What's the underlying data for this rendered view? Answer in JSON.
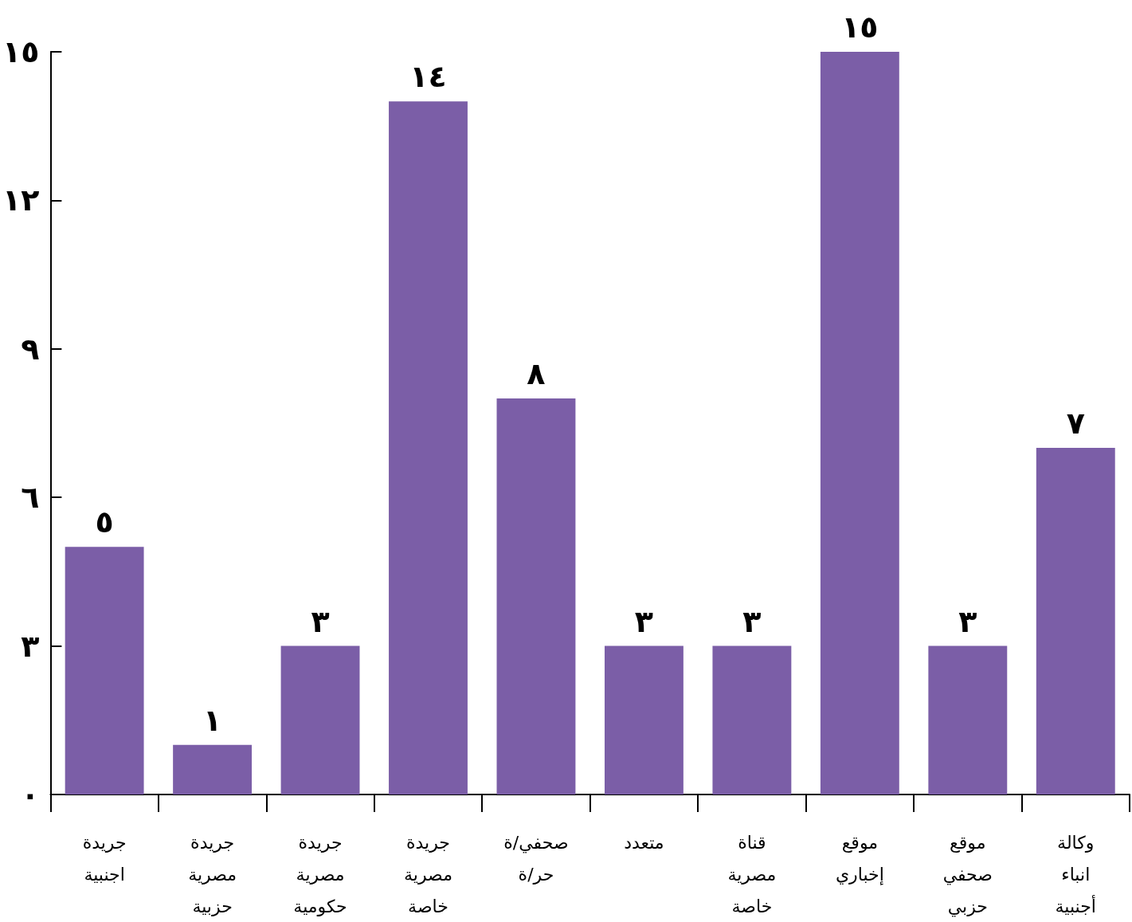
{
  "chart_data": {
    "type": "bar",
    "categories": [
      "جريدة اجنبية",
      "جريدة مصرية حزبية",
      "جريدة مصرية حكومية",
      "جريدة مصرية خاصة",
      "صحفي/ة حر/ة",
      "متعدد",
      "قناة مصرية خاصة",
      "موقع إخباري",
      "موقع صحفي حزبي",
      "وكالة انباء أجنبية"
    ],
    "values": [
      5,
      1,
      3,
      14,
      8,
      3,
      3,
      15,
      3,
      7
    ],
    "value_labels": [
      "٥",
      "١",
      "٣",
      "١٤",
      "٨",
      "٣",
      "٣",
      "١٥",
      "٣",
      "٧"
    ],
    "color": "#7b5ea7",
    "ylim": [
      0,
      15
    ],
    "yticks": [
      {
        "value": 0,
        "label": "٠"
      },
      {
        "value": 3,
        "label": "٣"
      },
      {
        "value": 6,
        "label": "٦"
      },
      {
        "value": 9,
        "label": "٩"
      },
      {
        "value": 12,
        "label": "١٢"
      },
      {
        "value": 15,
        "label": "١٥"
      }
    ],
    "grid": false
  }
}
